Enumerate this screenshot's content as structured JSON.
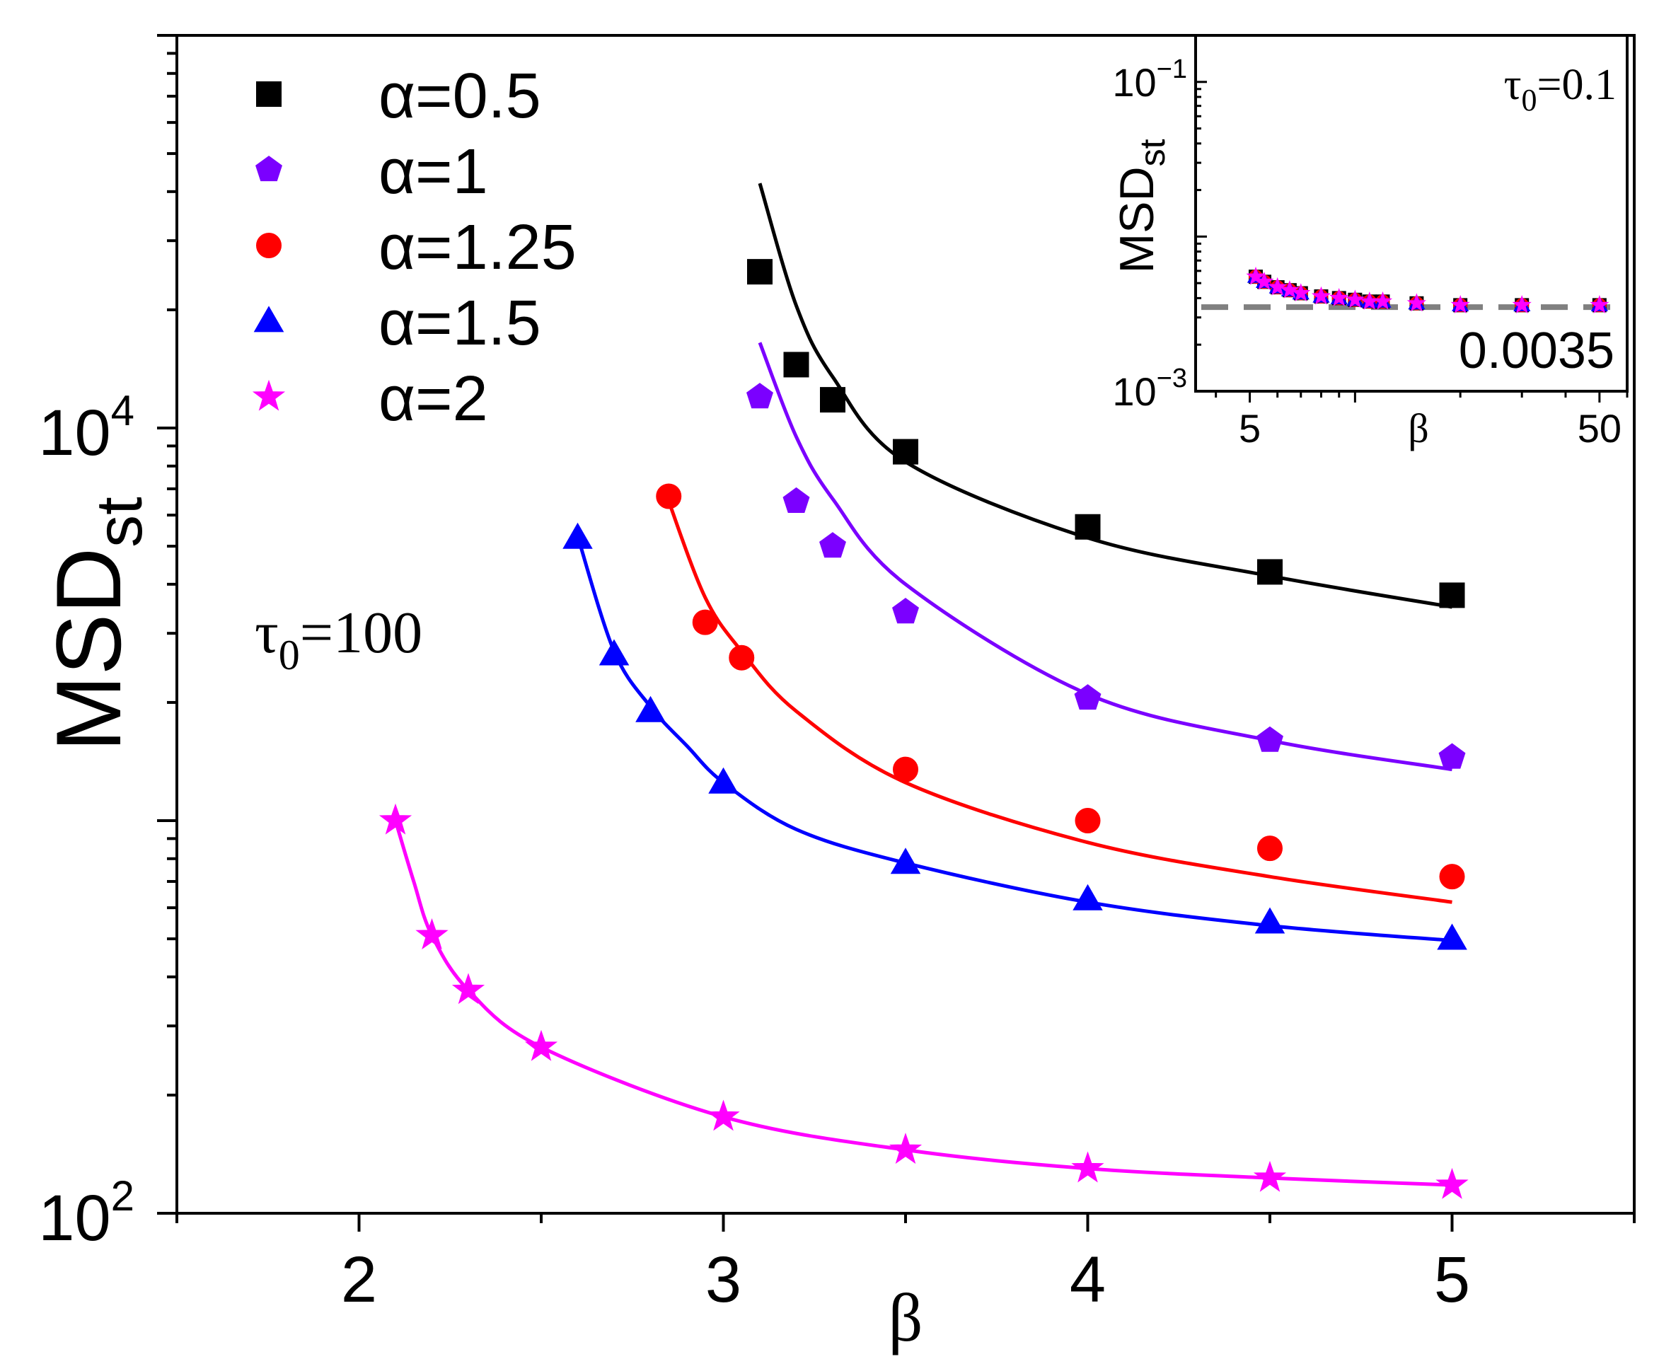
{
  "chart_data": [
    {
      "type": "scatter",
      "subtitle": "τ0=100",
      "annotation": {
        "symbol": "τ",
        "sub": "0",
        "rest": "=100"
      },
      "xlabel": "β",
      "ylabel": {
        "main": "MSD",
        "sub": "st"
      },
      "xscale": "linear",
      "yscale": "log",
      "xlim": [
        1.5,
        5.5
      ],
      "ylim": [
        100,
        100000
      ],
      "xticks": [
        "2",
        "3",
        "4",
        "5"
      ],
      "yticks": [
        {
          "base": "10",
          "exp": "2",
          "value": 100
        },
        {
          "base": "10",
          "exp": "4",
          "value": 10000
        }
      ],
      "grid": false,
      "legend": {
        "position": "top-left"
      },
      "series": [
        {
          "name": "α=0.5",
          "marker": "square",
          "color": "#000000",
          "x": [
            3.1,
            3.2,
            3.3,
            3.5,
            4.0,
            4.5,
            5.0
          ],
          "y": [
            25000,
            14500,
            11800,
            8700,
            5600,
            4300,
            3750
          ],
          "fit_x": [
            3.1,
            3.2,
            3.3,
            3.5,
            4.0,
            4.5,
            5.0
          ],
          "fit_y": [
            42000,
            20500,
            13500,
            8200,
            5250,
            4200,
            3500
          ]
        },
        {
          "name": "α=1",
          "marker": "pentagon",
          "color": "#7b00ff",
          "x": [
            3.1,
            3.2,
            3.3,
            3.5,
            4.0,
            4.5,
            5.0
          ],
          "y": [
            12000,
            6500,
            5000,
            3400,
            2050,
            1600,
            1450
          ],
          "fit_x": [
            3.1,
            3.2,
            3.3,
            3.5,
            4.0,
            4.5,
            5.0
          ],
          "fit_y": [
            16500,
            9500,
            6600,
            4000,
            2100,
            1600,
            1350
          ]
        },
        {
          "name": "α=1.25",
          "marker": "circle",
          "color": "#ff0000",
          "x": [
            2.85,
            2.95,
            3.05,
            3.5,
            4.0,
            4.5,
            5.0
          ],
          "y": [
            6700,
            3200,
            2600,
            1350,
            1000,
            850,
            720
          ],
          "fit_x": [
            2.85,
            2.95,
            3.05,
            3.2,
            3.5,
            4.0,
            4.5,
            5.0
          ],
          "fit_y": [
            6500,
            3700,
            2700,
            1900,
            1250,
            880,
            720,
            620
          ]
        },
        {
          "name": "α=1.5",
          "marker": "triangle",
          "color": "#0000ff",
          "x": [
            2.6,
            2.7,
            2.8,
            3.0,
            3.5,
            4.0,
            4.5,
            5.0
          ],
          "y": [
            5250,
            2650,
            1900,
            1250,
            780,
            630,
            550,
            500
          ],
          "fit_x": [
            2.6,
            2.7,
            2.8,
            2.9,
            3.0,
            3.2,
            3.5,
            4.0,
            4.5,
            5.0
          ],
          "fit_y": [
            5300,
            2700,
            1950,
            1550,
            1250,
            950,
            780,
            620,
            540,
            495
          ]
        },
        {
          "name": "α=2",
          "marker": "star",
          "color": "#ff00ff",
          "x": [
            2.1,
            2.2,
            2.3,
            2.5,
            3.0,
            3.5,
            4.0,
            4.5,
            5.0
          ],
          "y": [
            1000,
            510,
            370,
            265,
            176,
            145,
            130,
            123,
            118
          ],
          "fit_x": [
            2.1,
            2.15,
            2.2,
            2.3,
            2.5,
            3.0,
            3.5,
            4.0,
            4.5,
            5.0
          ],
          "fit_y": [
            1000,
            700,
            510,
            370,
            265,
            176,
            145,
            130,
            123,
            118
          ]
        }
      ]
    },
    {
      "type": "scatter",
      "subtitle": "τ0=0.1",
      "annotation": {
        "symbol": "τ",
        "sub": "0",
        "rest": "=0.1"
      },
      "reference_label": "0.0035",
      "reference_value": 0.0035,
      "reference_style": "dashed gray",
      "xlabel": "β",
      "ylabel": {
        "main": "MSD",
        "sub": "st"
      },
      "xscale": "log",
      "yscale": "log",
      "xlim": [
        3.5,
        60
      ],
      "ylim": [
        0.001,
        0.2
      ],
      "xticks": [
        "5",
        "50"
      ],
      "yticks": [
        {
          "base": "10",
          "exp": "−3",
          "value": 0.001
        },
        {
          "base": "10",
          "exp": "−1",
          "value": 0.1
        }
      ],
      "grid": false,
      "series": [
        {
          "name": "α=0.5",
          "marker": "square",
          "color": "#000000",
          "x": [
            5.2,
            5.5,
            6,
            6.5,
            7,
            8,
            9,
            10,
            11,
            12,
            15,
            20,
            30,
            50
          ],
          "y": [
            0.0055,
            0.0051,
            0.0047,
            0.0045,
            0.0043,
            0.0041,
            0.004,
            0.0039,
            0.0038,
            0.0038,
            0.0037,
            0.0036,
            0.0036,
            0.0036
          ]
        },
        {
          "name": "α=1",
          "marker": "pentagon",
          "color": "#7b00ff",
          "x": [
            5.2,
            5.5,
            6,
            6.5,
            7,
            8,
            9,
            10,
            11,
            12,
            15,
            20,
            30,
            50
          ],
          "y": [
            0.0055,
            0.0051,
            0.0047,
            0.0045,
            0.0043,
            0.0041,
            0.004,
            0.0039,
            0.0038,
            0.0038,
            0.0037,
            0.0036,
            0.0036,
            0.0036
          ]
        },
        {
          "name": "α=1.25",
          "marker": "circle",
          "color": "#ff0000",
          "x": [
            5.2,
            5.5,
            6,
            6.5,
            7,
            8,
            9,
            10,
            11,
            12,
            15,
            20,
            30,
            50
          ],
          "y": [
            0.0055,
            0.0051,
            0.0047,
            0.0045,
            0.0043,
            0.0041,
            0.004,
            0.0039,
            0.0038,
            0.0038,
            0.0037,
            0.0036,
            0.0036,
            0.0036
          ]
        },
        {
          "name": "α=1.5",
          "marker": "triangle",
          "color": "#0000ff",
          "x": [
            5.2,
            5.5,
            6,
            6.5,
            7,
            8,
            9,
            10,
            11,
            12,
            15,
            20,
            30,
            50
          ],
          "y": [
            0.0055,
            0.0051,
            0.0047,
            0.0045,
            0.0043,
            0.0041,
            0.004,
            0.0039,
            0.0038,
            0.0038,
            0.0037,
            0.0036,
            0.0036,
            0.0036
          ]
        },
        {
          "name": "α=2",
          "marker": "star",
          "color": "#ff00ff",
          "x": [
            5.2,
            5.5,
            6,
            6.5,
            7,
            8,
            9,
            10,
            11,
            12,
            15,
            20,
            30,
            50
          ],
          "y": [
            0.0055,
            0.0051,
            0.0047,
            0.0045,
            0.0043,
            0.0041,
            0.004,
            0.0039,
            0.0038,
            0.0038,
            0.0037,
            0.0036,
            0.0036,
            0.0036
          ]
        }
      ]
    }
  ]
}
